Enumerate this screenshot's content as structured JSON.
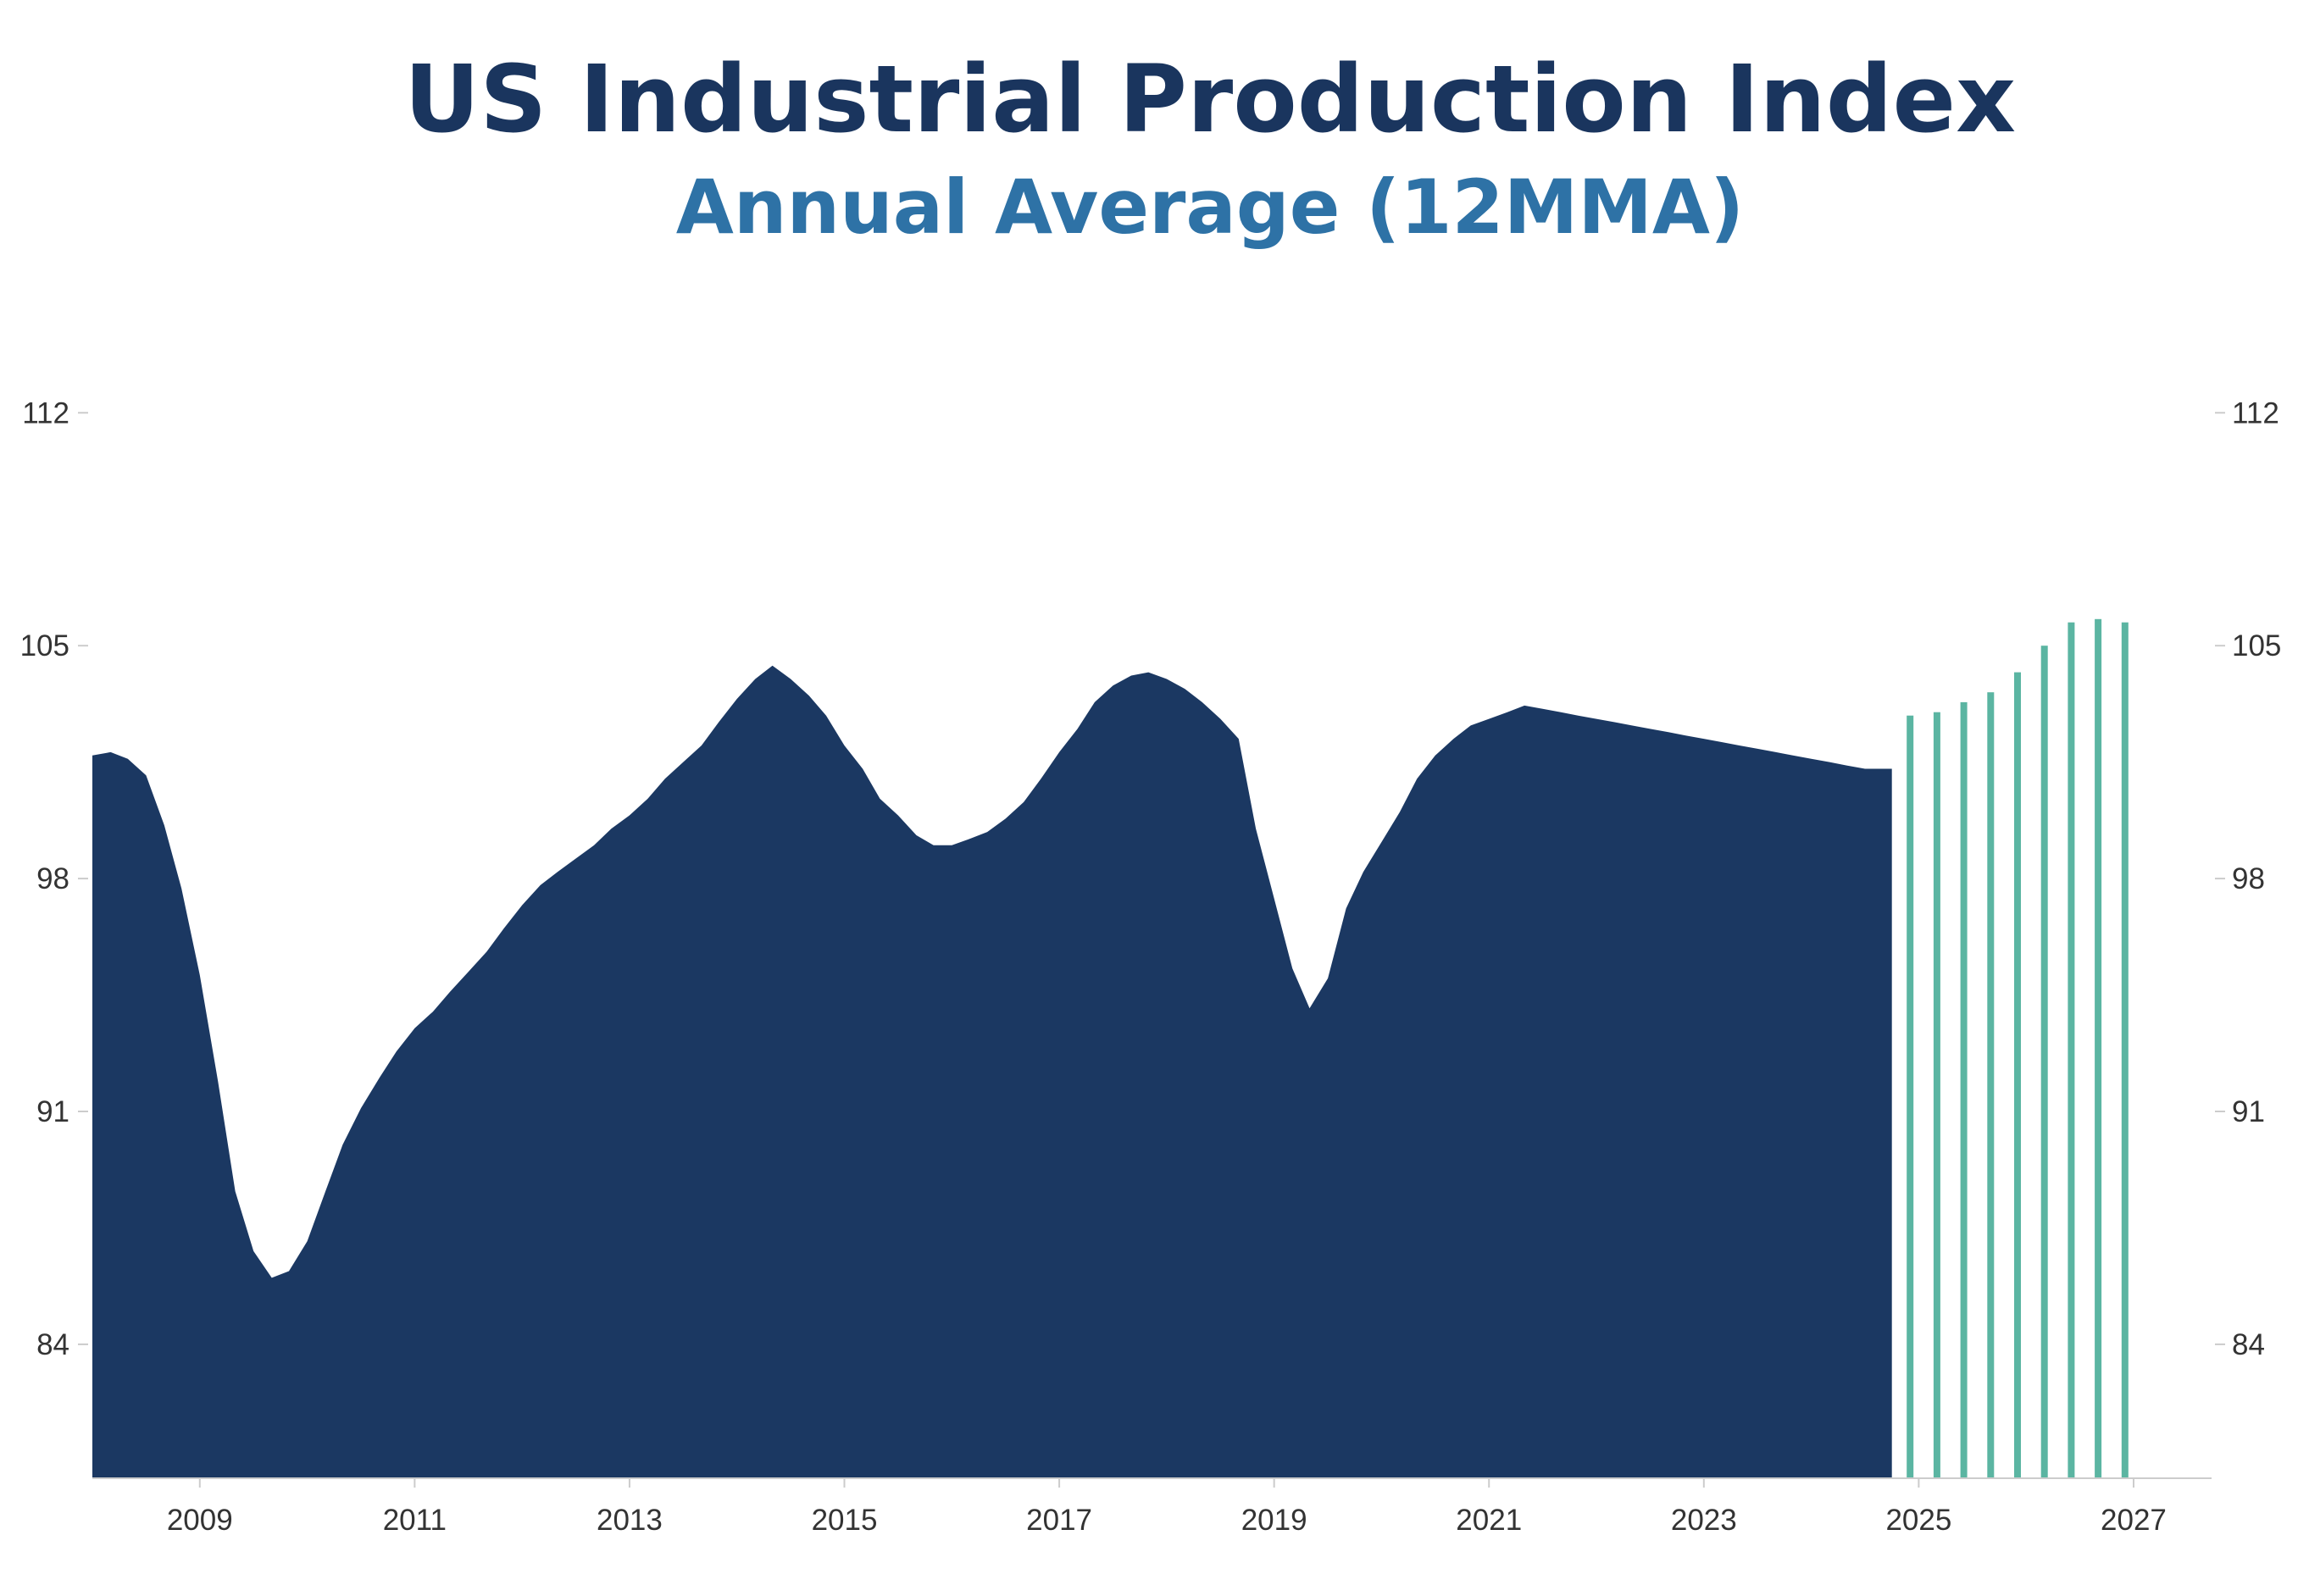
{
  "chart_data": {
    "type": "area",
    "title": "US Industrial Production Index",
    "subtitle": "Annual Average (12MMA)",
    "xlabel": "",
    "ylabel": "",
    "xlim": [
      2008.0,
      2027.3
    ],
    "ylim": [
      80,
      113
    ],
    "y_ticks": [
      84,
      91,
      98,
      105,
      112
    ],
    "x_ticks": [
      2009,
      2011,
      2013,
      2015,
      2017,
      2019,
      2021,
      2023,
      2025,
      2027
    ],
    "y_axis": "both sides",
    "grid": false,
    "colors": {
      "title": "#1a355e",
      "subtitle": "#2e72a6",
      "area": "#1b3862",
      "forecast": "#5bb5a2",
      "tick_text": "#333333",
      "tick_line": "#cccccc"
    },
    "series": [
      {
        "style": "filled-area",
        "x": [
          2008.0,
          2008.17,
          2008.33,
          2008.5,
          2008.67,
          2008.83,
          2009.0,
          2009.17,
          2009.33,
          2009.5,
          2009.67,
          2009.83,
          2010.0,
          2010.17,
          2010.33,
          2010.5,
          2010.67,
          2010.83,
          2011.0,
          2011.17,
          2011.33,
          2011.5,
          2011.67,
          2011.83,
          2012.0,
          2012.17,
          2012.33,
          2012.5,
          2012.67,
          2012.83,
          2013.0,
          2013.17,
          2013.33,
          2013.5,
          2013.67,
          2013.83,
          2014.0,
          2014.17,
          2014.33,
          2014.5,
          2014.67,
          2014.83,
          2015.0,
          2015.17,
          2015.33,
          2015.5,
          2015.67,
          2015.83,
          2016.0,
          2016.17,
          2016.33,
          2016.5,
          2016.67,
          2016.83,
          2017.0,
          2017.17,
          2017.33,
          2017.5,
          2017.67,
          2017.83,
          2018.0,
          2018.17,
          2018.33,
          2018.5,
          2018.67,
          2018.83,
          2019.0,
          2019.17,
          2019.33,
          2019.5,
          2019.67,
          2019.83,
          2020.0,
          2020.17,
          2020.33,
          2020.5,
          2020.67,
          2020.83,
          2021.0,
          2021.17,
          2021.33,
          2021.5,
          2021.67,
          2021.83,
          2022.0,
          2022.17,
          2022.33,
          2022.5,
          2022.67,
          2022.83,
          2023.0,
          2023.17,
          2023.33,
          2023.5,
          2023.67,
          2023.83,
          2024.0,
          2024.17,
          2024.33,
          2024.5,
          2024.75
        ],
        "y": [
          101.7,
          101.8,
          101.6,
          101.1,
          99.6,
          97.7,
          95.1,
          91.9,
          88.6,
          86.8,
          86.0,
          86.2,
          87.1,
          88.6,
          90.0,
          91.1,
          92.0,
          92.8,
          93.5,
          94.0,
          94.6,
          95.2,
          95.8,
          96.5,
          97.2,
          97.8,
          98.2,
          98.6,
          99.0,
          99.5,
          99.9,
          100.4,
          101.0,
          101.5,
          102.0,
          102.7,
          103.4,
          104.0,
          104.4,
          104.0,
          103.5,
          102.9,
          102.0,
          101.3,
          100.4,
          99.9,
          99.3,
          99.0,
          99.0,
          99.2,
          99.4,
          99.8,
          100.3,
          101.0,
          101.8,
          102.5,
          103.3,
          103.8,
          104.1,
          104.2,
          104.0,
          103.7,
          103.3,
          102.8,
          102.2,
          99.5,
          97.4,
          95.3,
          94.1,
          95.0,
          97.1,
          98.2,
          99.1,
          100.0,
          101.0,
          101.7,
          102.2,
          102.6,
          102.8,
          103.0,
          103.2,
          103.1,
          103.0,
          102.9,
          102.8,
          102.7,
          102.6,
          102.5,
          102.4,
          102.3,
          102.2,
          102.1,
          102.0,
          101.9,
          101.8,
          101.7,
          101.6,
          101.5,
          101.4,
          101.3,
          101.3
        ]
      },
      {
        "style": "forecast-bars",
        "x": [
          2024.92,
          2025.17,
          2025.42,
          2025.67,
          2025.92,
          2026.17,
          2026.42,
          2026.67,
          2026.92
        ],
        "y": [
          102.9,
          103.0,
          103.3,
          103.6,
          104.2,
          105.0,
          105.7,
          105.8,
          105.7
        ]
      }
    ]
  }
}
